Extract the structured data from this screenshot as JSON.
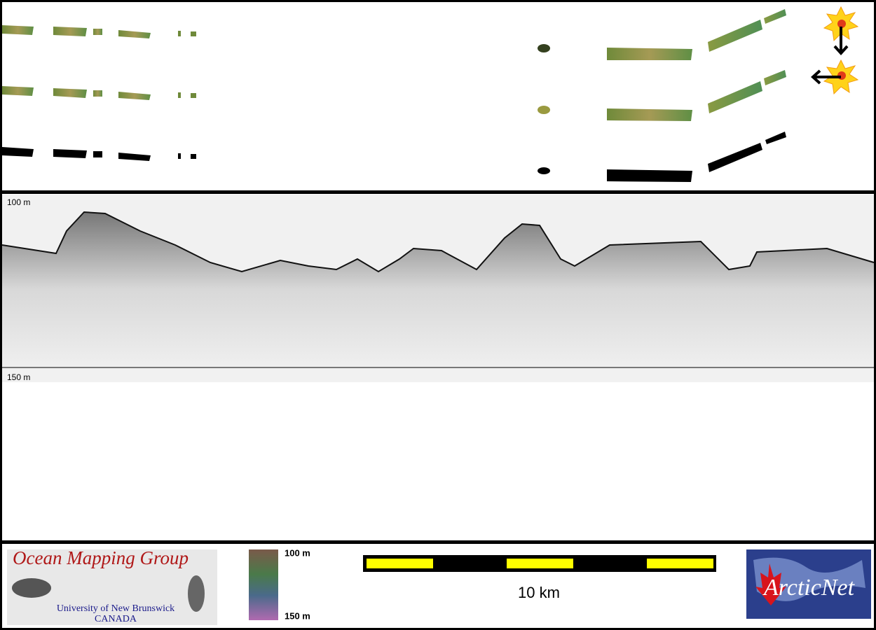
{
  "profile": {
    "top_label": "100 m",
    "bottom_label": "150 m"
  },
  "legend": {
    "top_label": "100 m",
    "bottom_label": "150 m"
  },
  "scale_bar": {
    "label": "10 km"
  },
  "logos": {
    "left": {
      "title": "Ocean Mapping Group",
      "line1": "University of New Brunswick",
      "line2": "CANADA"
    },
    "right": {
      "title": "ArcticNet"
    }
  }
}
